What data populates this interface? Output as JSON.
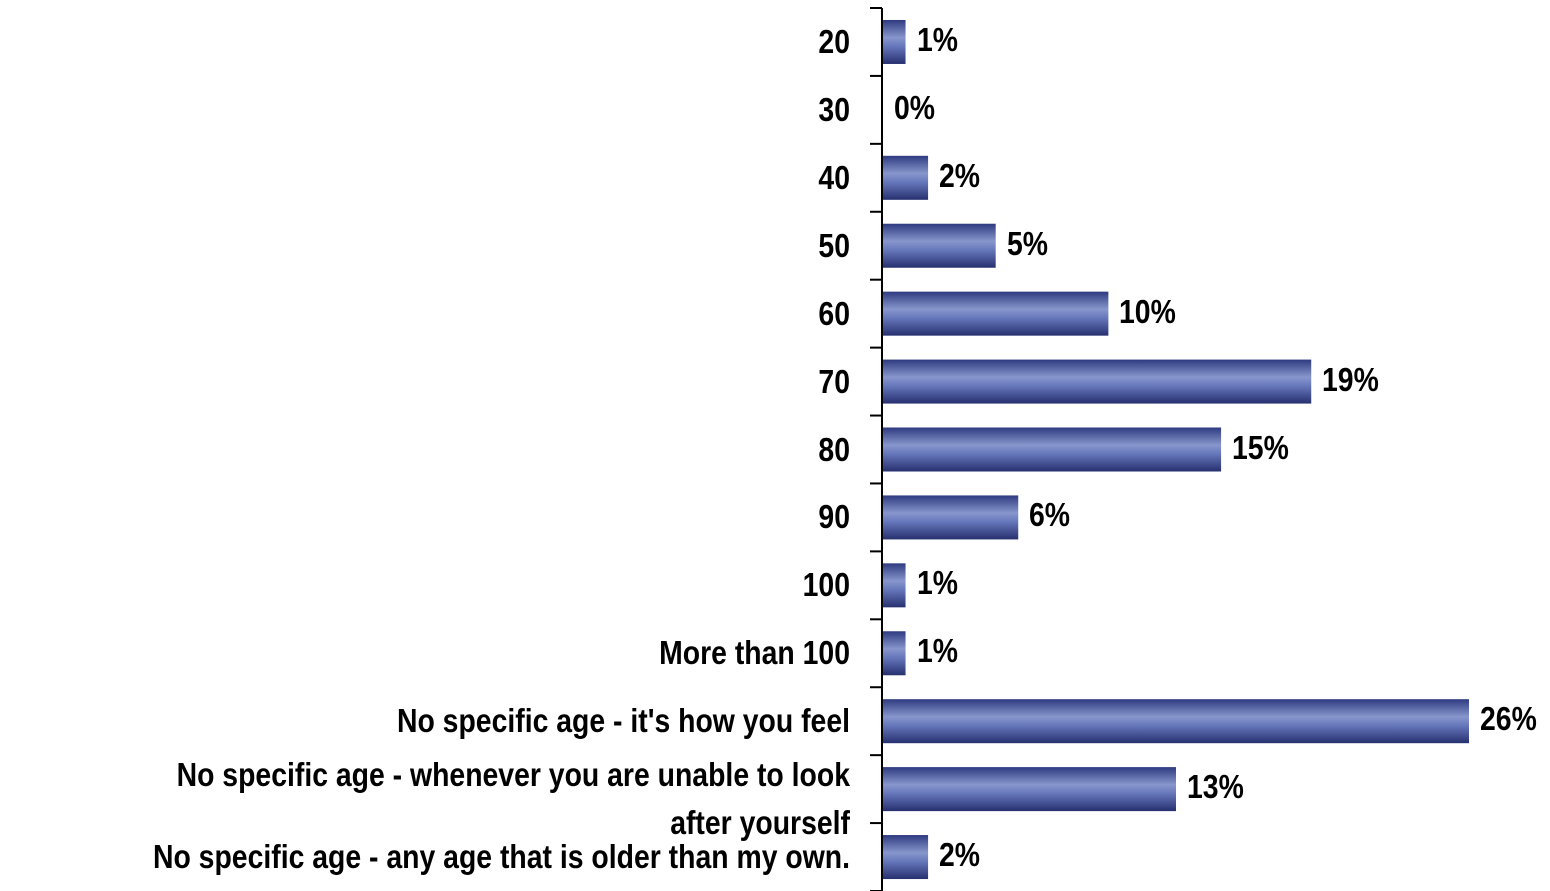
{
  "chart_data": {
    "type": "bar",
    "orientation": "horizontal",
    "categories": [
      "20",
      "30",
      "40",
      "50",
      "60",
      "70",
      "80",
      "90",
      "100",
      "More than 100",
      "No specific age - it's how you feel",
      "No specific age - whenever you are unable to look after yourself",
      "No specific age - any age that is older than my own."
    ],
    "values": [
      1,
      0,
      2,
      5,
      10,
      19,
      15,
      6,
      1,
      1,
      26,
      13,
      2
    ],
    "value_labels": [
      "1%",
      "0%",
      "2%",
      "5%",
      "10%",
      "19%",
      "15%",
      "6%",
      "1%",
      "1%",
      "26%",
      "13%",
      "2%"
    ],
    "unit": "%",
    "title": "",
    "xlabel": "",
    "ylabel": "",
    "xlim": [
      0,
      26
    ],
    "grid": false,
    "legend": "none",
    "bar_color": "#4a5a9e",
    "bar_highlight": "#8a9bd0",
    "bar_shadow": "#2a3578"
  }
}
